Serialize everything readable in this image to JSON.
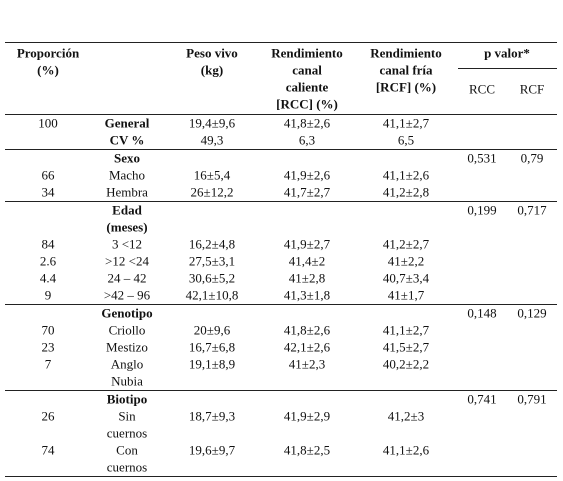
{
  "header": {
    "columns": [
      [
        "Proporción",
        "(%)"
      ],
      null,
      [
        "Peso vivo",
        "(kg)"
      ],
      [
        "Rendimiento",
        "canal",
        "caliente",
        "[RCC] (%)"
      ],
      [
        "Rendimiento",
        "canal fría",
        "[RCF] (%)"
      ]
    ],
    "p_value": "p valor*",
    "p_columns": [
      "RCC",
      "RCF"
    ]
  },
  "sections": [
    {
      "bold_label": true,
      "rows": [
        [
          "100",
          "General",
          "19,4±9,6",
          "41,8±2,6",
          "41,1±2,7"
        ],
        [
          null,
          "CV %",
          "49,3",
          "6,3",
          "6,5"
        ]
      ]
    },
    {
      "title": [
        "Sexo"
      ],
      "p": [
        "0,531",
        "0,79"
      ],
      "rows": [
        [
          "66",
          "Macho",
          "16±5,4",
          "41,9±2,6",
          "41,1±2,6"
        ],
        [
          "34",
          "Hembra",
          "26±12,2",
          "41,7±2,7",
          "41,2±2,8"
        ]
      ]
    },
    {
      "title": [
        "Edad",
        "(meses)"
      ],
      "p": [
        "0,199",
        "0,717"
      ],
      "rows": [
        [
          "84",
          "3 <12",
          "16,2±4,8",
          "41,9±2,7",
          "41,2±2,7"
        ],
        [
          "2.6",
          ">12 <24",
          "27,5±3,1",
          "41,4±2",
          "41±2,2"
        ],
        [
          "4.4",
          "24 – 42",
          "30,6±5,2",
          "41±2,8",
          "40,7±3,4"
        ],
        [
          "9",
          ">42 – 96",
          "42,1±10,8",
          "41,3±1,8",
          "41±1,7"
        ]
      ]
    },
    {
      "title": [
        "Genotipo"
      ],
      "p": [
        "0,148",
        "0,129"
      ],
      "rows": [
        [
          "70",
          "Criollo",
          "20±9,6",
          "41,8±2,6",
          "41,1±2,7"
        ],
        [
          "23",
          "Mestizo",
          "16,7±6,8",
          "42,1±2,6",
          "41,5±2,7"
        ],
        [
          "7",
          [
            "Anglo",
            "Nubia"
          ],
          "19,1±8,9",
          "41±2,3",
          "40,2±2,2"
        ]
      ]
    },
    {
      "title": [
        "Biotipo"
      ],
      "p": [
        "0,741",
        "0,791"
      ],
      "rows": [
        [
          "26",
          [
            "Sin",
            "cuernos"
          ],
          "18,7±9,3",
          "41,9±2,9",
          "41,2±3"
        ],
        [
          "74",
          [
            "Con",
            "cuernos"
          ],
          "19,6±9,7",
          "41,8±2,5",
          "41,1±2,6"
        ]
      ]
    }
  ]
}
